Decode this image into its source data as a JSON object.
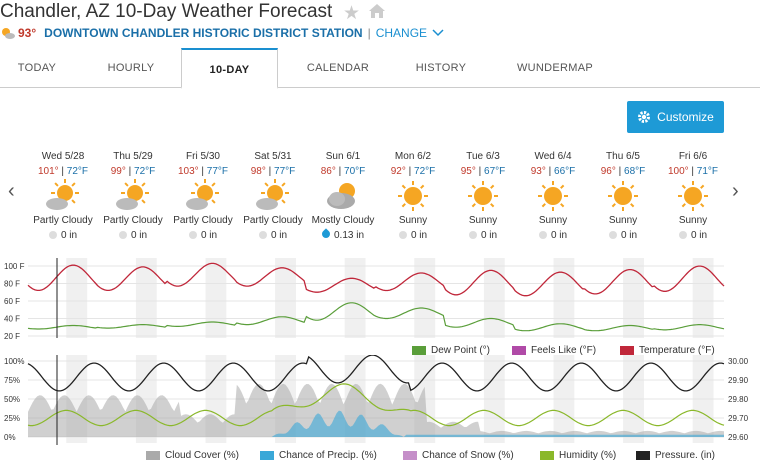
{
  "header": {
    "title": "Chandler, AZ 10-Day Weather Forecast",
    "current_temp": "93°",
    "station": "DOWNTOWN CHANDLER HISTORIC DISTRICT STATION",
    "change": "CHANGE"
  },
  "tabs": [
    {
      "label": "TODAY"
    },
    {
      "label": "HOURLY"
    },
    {
      "label": "10-DAY"
    },
    {
      "label": "CALENDAR"
    },
    {
      "label": "HISTORY"
    },
    {
      "label": "WUNDERMAP"
    }
  ],
  "toolbar": {
    "customize_label": "Customize"
  },
  "days": [
    {
      "date": "Wed 5/28",
      "hi": "101°",
      "lo": "72°F",
      "cond": "Partly Cloudy",
      "precip": "0 in",
      "icon": "partly-cloudy-icon"
    },
    {
      "date": "Thu 5/29",
      "hi": "99°",
      "lo": "72°F",
      "cond": "Partly Cloudy",
      "precip": "0 in",
      "icon": "partly-cloudy-icon"
    },
    {
      "date": "Fri 5/30",
      "hi": "103°",
      "lo": "77°F",
      "cond": "Partly Cloudy",
      "precip": "0 in",
      "icon": "partly-cloudy-icon"
    },
    {
      "date": "Sat 5/31",
      "hi": "98°",
      "lo": "77°F",
      "cond": "Partly Cloudy",
      "precip": "0 in",
      "icon": "partly-cloudy-icon"
    },
    {
      "date": "Sun 6/1",
      "hi": "86°",
      "lo": "70°F",
      "cond": "Mostly Cloudy",
      "precip": "0.13 in",
      "icon": "mostly-cloudy-icon"
    },
    {
      "date": "Mon 6/2",
      "hi": "92°",
      "lo": "72°F",
      "cond": "Sunny",
      "precip": "0 in",
      "icon": "sunny-icon"
    },
    {
      "date": "Tue 6/3",
      "hi": "95°",
      "lo": "67°F",
      "cond": "Sunny",
      "precip": "0 in",
      "icon": "sunny-icon"
    },
    {
      "date": "Wed 6/4",
      "hi": "93°",
      "lo": "66°F",
      "cond": "Sunny",
      "precip": "0 in",
      "icon": "sunny-icon"
    },
    {
      "date": "Thu 6/5",
      "hi": "96°",
      "lo": "68°F",
      "cond": "Sunny",
      "precip": "0 in",
      "icon": "sunny-icon"
    },
    {
      "date": "Fri 6/6",
      "hi": "100°",
      "lo": "71°F",
      "cond": "Sunny",
      "precip": "0 in",
      "icon": "sunny-icon"
    }
  ],
  "chart_data": [
    {
      "type": "line",
      "yticks": [
        "100 F",
        "80 F",
        "60 F",
        "40 F",
        "20 F"
      ],
      "ylim": [
        20,
        100
      ],
      "series": [
        {
          "name": "Dew Point (°)",
          "color": "#5a9e3a",
          "lows": [
            28,
            29,
            31,
            33,
            38,
            40,
            30,
            26,
            26,
            27
          ],
          "highs": [
            32,
            33,
            36,
            42,
            58,
            52,
            40,
            34,
            32,
            33
          ]
        },
        {
          "name": "Feels Like (°F)",
          "color": "#b04aa7"
        },
        {
          "name": "Temperature (°F)",
          "color": "#c0273a",
          "lows": [
            72,
            72,
            77,
            77,
            70,
            72,
            67,
            66,
            68,
            71
          ],
          "highs": [
            101,
            99,
            103,
            98,
            86,
            92,
            95,
            93,
            96,
            100
          ]
        }
      ]
    },
    {
      "type": "line",
      "yticks_left": [
        "100%",
        "75%",
        "50%",
        "25%",
        "0%"
      ],
      "yticks_right": [
        "30.00",
        "29.90",
        "29.80",
        "29.70",
        "29.60"
      ],
      "series": [
        {
          "name": "Cloud Cover (%)",
          "color": "#aaaaaa"
        },
        {
          "name": "Chance of Precip. (%)",
          "color": "#3aa8d8"
        },
        {
          "name": "Chance of Snow (%)",
          "color": "#c58fc9"
        },
        {
          "name": "Humidity (%)",
          "color": "#8ab82a"
        },
        {
          "name": "Pressure. (in)",
          "color": "#222222"
        }
      ]
    }
  ],
  "colors": {
    "accent": "#1e9ad6",
    "high": "#c0392b",
    "low": "#1a6fa8"
  }
}
